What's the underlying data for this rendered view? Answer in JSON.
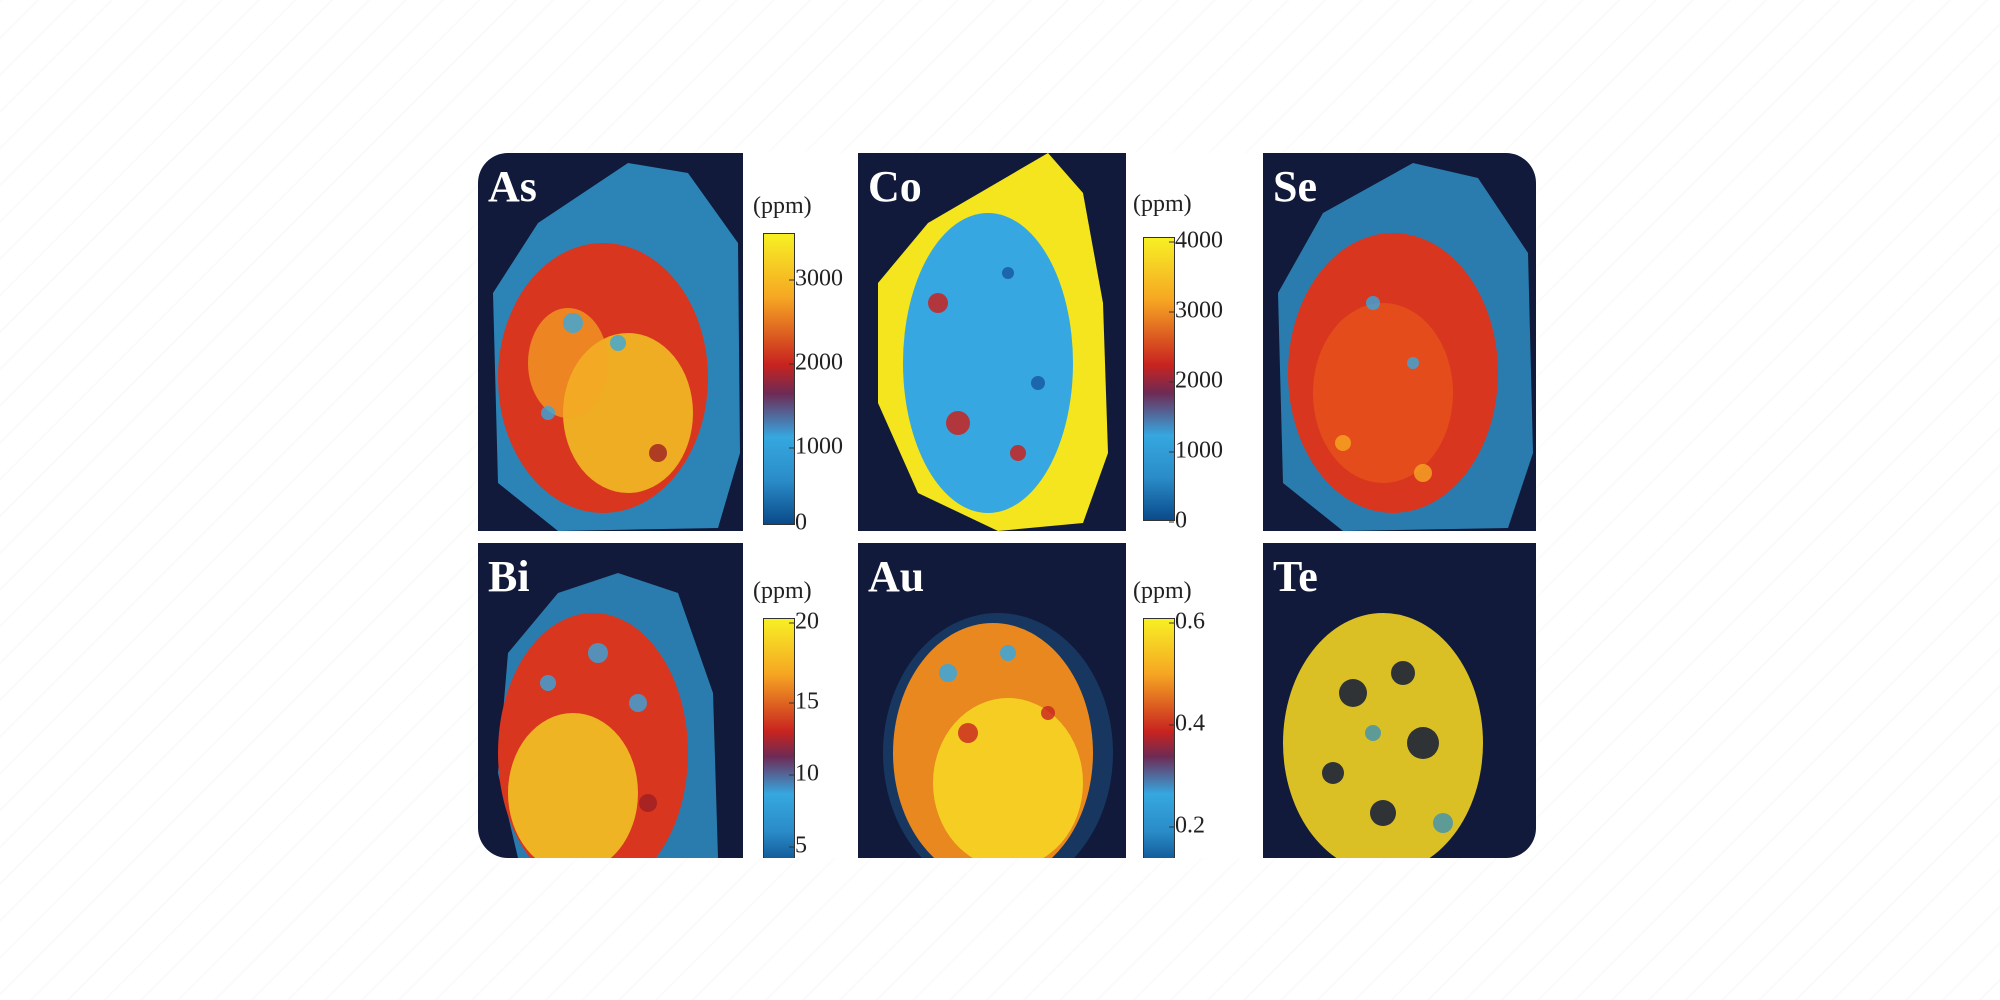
{
  "panels": [
    {
      "id": "as",
      "label": "As"
    },
    {
      "id": "co",
      "label": "Co"
    },
    {
      "id": "se",
      "label": "Se"
    },
    {
      "id": "bi",
      "label": "Bi"
    },
    {
      "id": "au",
      "label": "Au"
    },
    {
      "id": "te",
      "label": "Te"
    }
  ],
  "colorbars": [
    {
      "id": "cb-as",
      "unit": "(ppm)",
      "ticks": [
        "3000",
        "2000",
        "1000",
        "0"
      ]
    },
    {
      "id": "cb-co",
      "unit": "(ppm)",
      "ticks": [
        "4000",
        "3000",
        "2000",
        "1000",
        "0"
      ]
    },
    {
      "id": "cb-bi",
      "unit": "(ppm)",
      "ticks": [
        "20",
        "15",
        "10",
        "5"
      ]
    },
    {
      "id": "cb-au",
      "unit": "(ppm)",
      "ticks": [
        "0.6",
        "0.4",
        "0.2"
      ]
    }
  ],
  "colors": {
    "background": "#111a3a",
    "halo": "#36a7e0",
    "hot": "#f7e324",
    "mid": "#e8521c",
    "dark": "#9e1f23"
  }
}
